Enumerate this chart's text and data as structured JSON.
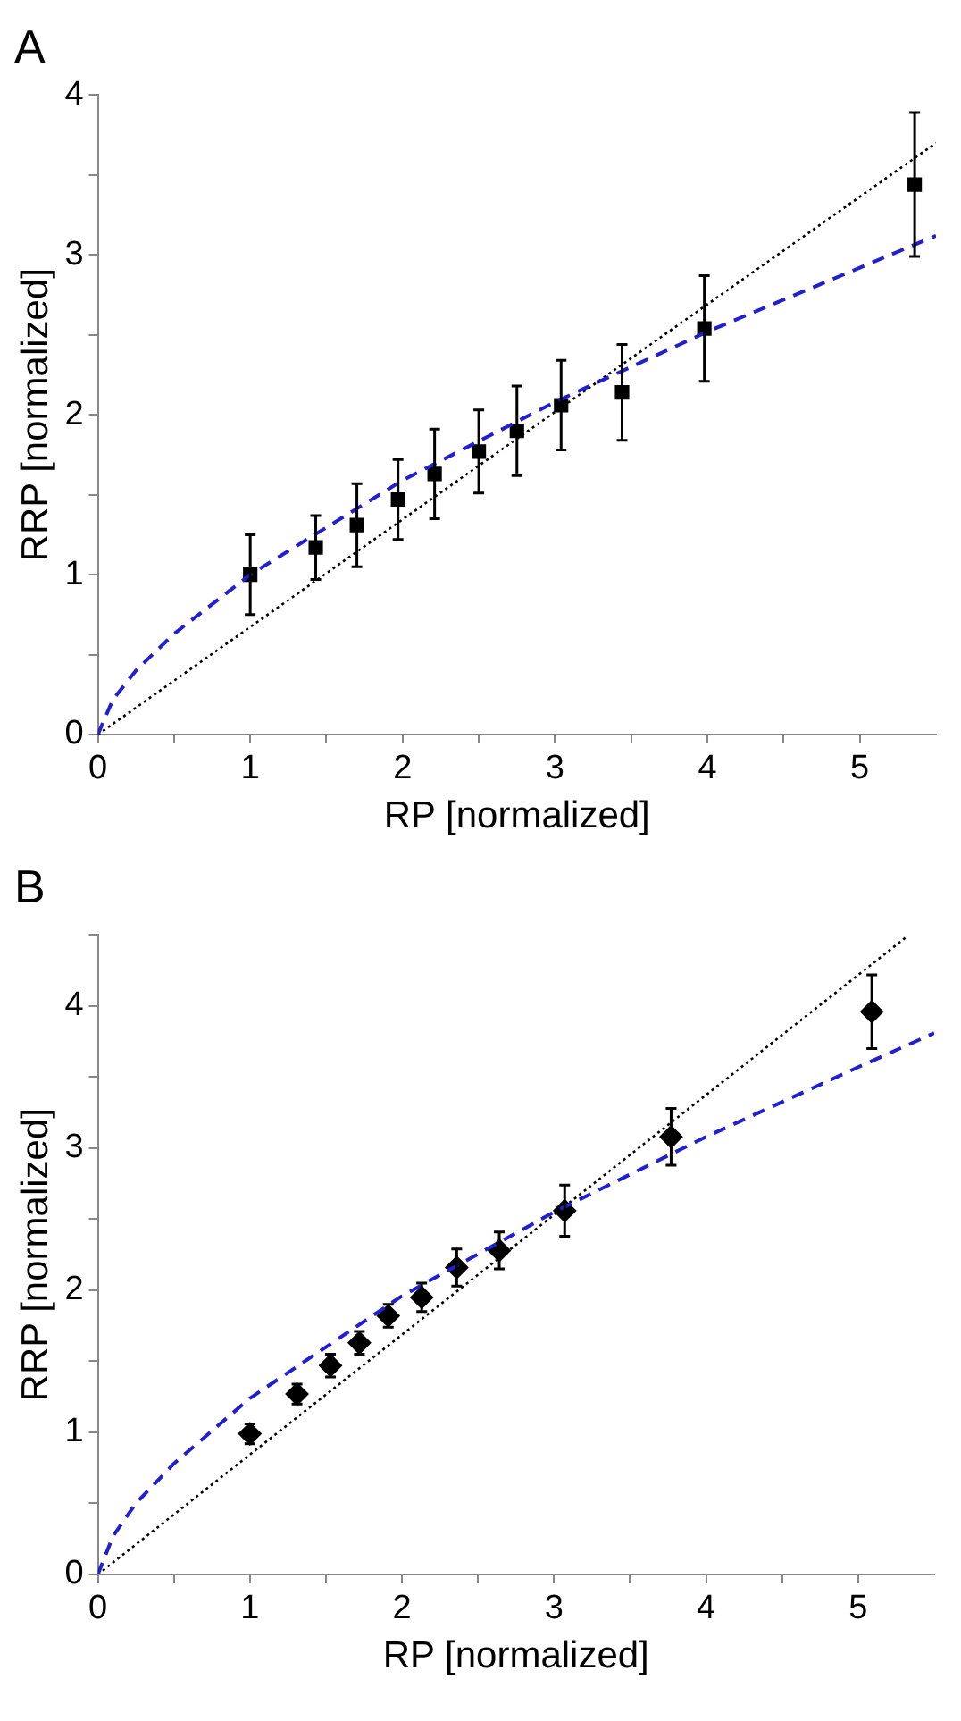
{
  "chart_data": [
    {
      "type": "scatter",
      "title": "A",
      "xlabel": "RP [normalized]",
      "ylabel": "RRP [normalized]",
      "xlim": [
        0,
        5.5
      ],
      "ylim": [
        0,
        4
      ],
      "xticks": [
        0,
        {
          "value": 0.5,
          "label": null
        },
        1,
        {
          "value": 1.5,
          "label": null
        },
        2,
        {
          "value": 2.5,
          "label": null
        },
        3,
        {
          "value": 3.5,
          "label": null
        },
        4,
        {
          "value": 4.5,
          "label": null
        },
        5
      ],
      "yticks": [
        0,
        {
          "value": 0.5,
          "label": null
        },
        1,
        {
          "value": 1.5,
          "label": null
        },
        2,
        {
          "value": 2.5,
          "label": null
        },
        3,
        {
          "value": 3.5,
          "label": null
        },
        4
      ],
      "grid": false,
      "legend": false,
      "series": [
        {
          "type": "scatter",
          "marker": "square",
          "color": "#000000",
          "x": [
            1.0,
            1.43,
            1.7,
            1.97,
            2.21,
            2.5,
            2.75,
            3.04,
            3.44,
            3.98,
            5.36
          ],
          "values": [
            1.0,
            1.17,
            1.31,
            1.47,
            1.63,
            1.77,
            1.9,
            2.06,
            2.14,
            2.54,
            3.44
          ],
          "errors": [
            0.25,
            0.2,
            0.26,
            0.25,
            0.28,
            0.26,
            0.28,
            0.28,
            0.3,
            0.33,
            0.45
          ]
        },
        {
          "type": "line",
          "marker": "none",
          "line_style": "dotted",
          "color": "#000000",
          "x": [
            0,
            5.5
          ],
          "values": [
            0,
            3.7
          ]
        },
        {
          "type": "line",
          "marker": "none",
          "line_style": "dashed",
          "color": "#2020d0",
          "x": [
            0,
            0.1,
            0.25,
            0.5,
            1,
            2,
            3,
            4,
            5,
            5.5
          ],
          "values": [
            0,
            0.22,
            0.4,
            0.63,
            1,
            1.59,
            2.08,
            2.52,
            2.92,
            3.12
          ]
        }
      ]
    },
    {
      "type": "scatter",
      "title": "B",
      "xlabel": "RP [normalized]",
      "ylabel": "RRP [normalized]",
      "xlim": [
        0,
        5.5
      ],
      "ylim": [
        0,
        4.5
      ],
      "xticks": [
        0,
        {
          "value": 0.5,
          "label": null
        },
        1,
        {
          "value": 1.5,
          "label": null
        },
        2,
        {
          "value": 2.5,
          "label": null
        },
        3,
        {
          "value": 3.5,
          "label": null
        },
        4,
        {
          "value": 4.5,
          "label": null
        },
        5
      ],
      "yticks": [
        0,
        {
          "value": 0.5,
          "label": null
        },
        1,
        {
          "value": 1.5,
          "label": null
        },
        2,
        {
          "value": 2.5,
          "label": null
        },
        3,
        {
          "value": 3.5,
          "label": null
        },
        4,
        {
          "value": 4.5,
          "label": null
        }
      ],
      "grid": false,
      "legend": false,
      "series": [
        {
          "type": "scatter",
          "marker": "diamond",
          "color": "#000000",
          "x": [
            1.0,
            1.31,
            1.53,
            1.72,
            1.91,
            2.13,
            2.36,
            2.64,
            3.07,
            3.77,
            5.09
          ],
          "values": [
            0.99,
            1.27,
            1.47,
            1.63,
            1.82,
            1.95,
            2.16,
            2.28,
            2.56,
            3.08,
            3.96
          ],
          "errors": [
            0.07,
            0.07,
            0.08,
            0.08,
            0.08,
            0.1,
            0.13,
            0.13,
            0.18,
            0.2,
            0.26
          ]
        },
        {
          "type": "line",
          "marker": "none",
          "line_style": "dotted",
          "color": "#000000",
          "x": [
            0,
            5.31
          ],
          "values": [
            0,
            4.48
          ]
        },
        {
          "type": "line",
          "marker": "none",
          "line_style": "dashed",
          "color": "#2020d0",
          "x": [
            0,
            0.1,
            0.25,
            0.5,
            1,
            2,
            3,
            4,
            5,
            5.5
          ],
          "values": [
            0,
            0.27,
            0.5,
            0.78,
            1.24,
            1.96,
            2.55,
            3.08,
            3.57,
            3.81
          ]
        }
      ]
    }
  ]
}
